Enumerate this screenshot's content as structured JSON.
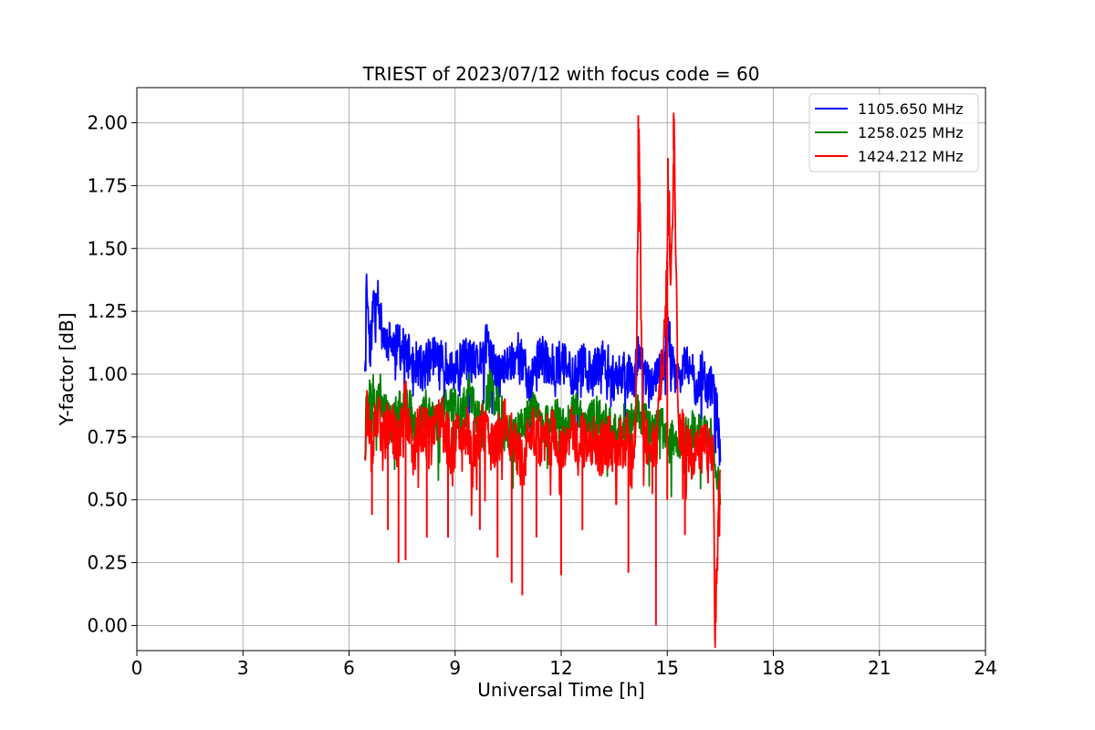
{
  "chart_data": {
    "type": "line",
    "title": "TRIEST of 2023/07/12 with focus code = 60",
    "xlabel": "Universal Time [h]",
    "ylabel": "Y-factor [dB]",
    "xlim": [
      0,
      24
    ],
    "ylim": [
      -0.1,
      2.14
    ],
    "xticks": [
      0,
      3,
      6,
      9,
      12,
      15,
      18,
      21,
      24
    ],
    "xtick_labels": [
      "0",
      "3",
      "6",
      "9",
      "12",
      "15",
      "18",
      "21",
      "24"
    ],
    "yticks": [
      0.0,
      0.25,
      0.5,
      0.75,
      1.0,
      1.25,
      1.5,
      1.75,
      2.0
    ],
    "ytick_labels": [
      "0.00",
      "0.25",
      "0.50",
      "0.75",
      "1.00",
      "1.25",
      "1.50",
      "1.75",
      "2.00"
    ],
    "grid": true,
    "legend_position": "top-right",
    "series": [
      {
        "name": "1105.650 MHz",
        "color": "#0000ff",
        "x": [
          6.45,
          6.5,
          6.55,
          6.6,
          6.7,
          6.8,
          6.9,
          7.0,
          7.2,
          7.5,
          7.8,
          8.1,
          8.4,
          8.7,
          9.0,
          9.3,
          9.6,
          9.9,
          10.2,
          10.5,
          10.8,
          11.1,
          11.4,
          11.7,
          12.0,
          12.3,
          12.6,
          12.9,
          13.2,
          13.5,
          13.8,
          14.1,
          14.2,
          14.4,
          14.7,
          14.9,
          15.0,
          15.1,
          15.2,
          15.4,
          15.6,
          15.8,
          16.0,
          16.2,
          16.35,
          16.5
        ],
        "y": [
          1.01,
          1.4,
          1.2,
          1.1,
          1.3,
          1.36,
          1.2,
          1.15,
          1.12,
          1.1,
          1.05,
          1.02,
          1.08,
          1.04,
          1.0,
          1.07,
          1.03,
          1.12,
          0.98,
          1.04,
          1.09,
          0.96,
          1.07,
          1.03,
          1.05,
          1.0,
          1.04,
          1.0,
          1.06,
          0.98,
          1.02,
          1.0,
          1.12,
          0.96,
          0.98,
          1.02,
          1.3,
          1.05,
          1.02,
          1.0,
          1.04,
          0.96,
          1.01,
          0.94,
          0.96,
          0.65
        ]
      },
      {
        "name": "1258.025 MHz",
        "color": "#008000",
        "x": [
          6.45,
          6.5,
          6.6,
          6.8,
          7.0,
          7.2,
          7.4,
          7.6,
          7.9,
          8.2,
          8.5,
          8.8,
          9.1,
          9.4,
          9.7,
          10.0,
          10.3,
          10.6,
          10.9,
          11.2,
          11.5,
          11.8,
          12.1,
          12.4,
          12.7,
          13.0,
          13.3,
          13.6,
          13.9,
          14.2,
          14.5,
          14.8,
          15.0,
          15.2,
          15.4,
          15.7,
          16.0,
          16.3,
          16.5
        ],
        "y": [
          0.66,
          0.98,
          0.9,
          0.95,
          0.88,
          0.8,
          0.85,
          0.92,
          0.78,
          0.88,
          0.82,
          0.9,
          0.86,
          0.93,
          0.8,
          0.95,
          0.84,
          0.76,
          0.8,
          0.86,
          0.78,
          0.84,
          0.8,
          0.86,
          0.79,
          0.84,
          0.8,
          0.78,
          0.82,
          0.85,
          0.78,
          0.8,
          0.76,
          0.75,
          0.74,
          0.78,
          0.76,
          0.74,
          0.48
        ]
      },
      {
        "name": "1424.212 MHz",
        "color": "#ff0000",
        "x": [
          6.45,
          6.5,
          6.6,
          6.8,
          7.0,
          7.2,
          7.4,
          7.6,
          7.8,
          8.0,
          8.3,
          8.6,
          8.9,
          9.2,
          9.5,
          9.8,
          10.1,
          10.4,
          10.7,
          10.9,
          11.2,
          11.5,
          11.8,
          12.0,
          12.2,
          12.5,
          12.8,
          13.1,
          13.4,
          13.7,
          13.9,
          14.1,
          14.2,
          14.3,
          14.5,
          14.7,
          14.8,
          14.9,
          15.0,
          15.05,
          15.1,
          15.2,
          15.3,
          15.5,
          15.7,
          15.9,
          16.1,
          16.3,
          16.35,
          16.5
        ],
        "y": [
          0.66,
          0.9,
          0.7,
          0.82,
          0.76,
          0.8,
          0.72,
          0.88,
          0.7,
          0.78,
          0.74,
          0.82,
          0.7,
          0.8,
          0.72,
          0.78,
          0.7,
          0.82,
          0.72,
          0.64,
          0.78,
          0.72,
          0.76,
          0.7,
          0.78,
          0.72,
          0.76,
          0.7,
          0.74,
          0.72,
          0.76,
          0.72,
          2.03,
          0.8,
          0.72,
          0.7,
          0.95,
          1.1,
          1.45,
          1.7,
          1.3,
          2.04,
          0.8,
          0.72,
          0.68,
          0.72,
          0.7,
          0.68,
          0.0,
          0.62
        ]
      }
    ],
    "spikes": {
      "1424.212 MHz": {
        "up": [
          [
            14.18,
            2.03
          ],
          [
            15.18,
            2.04
          ],
          [
            15.02,
            1.86
          ],
          [
            15.08,
            1.52
          ],
          [
            14.22,
            1.65
          ]
        ],
        "down": [
          [
            6.65,
            0.44
          ],
          [
            7.1,
            0.38
          ],
          [
            7.4,
            0.25
          ],
          [
            7.6,
            0.26
          ],
          [
            8.2,
            0.35
          ],
          [
            8.8,
            0.35
          ],
          [
            9.7,
            0.38
          ],
          [
            10.2,
            0.27
          ],
          [
            10.6,
            0.17
          ],
          [
            10.9,
            0.12
          ],
          [
            11.3,
            0.35
          ],
          [
            12.0,
            0.2
          ],
          [
            12.6,
            0.38
          ],
          [
            13.9,
            0.21
          ],
          [
            14.68,
            0.0
          ],
          [
            15.0,
            0.5
          ],
          [
            15.5,
            0.36
          ],
          [
            16.35,
            0.0
          ]
        ]
      }
    }
  }
}
